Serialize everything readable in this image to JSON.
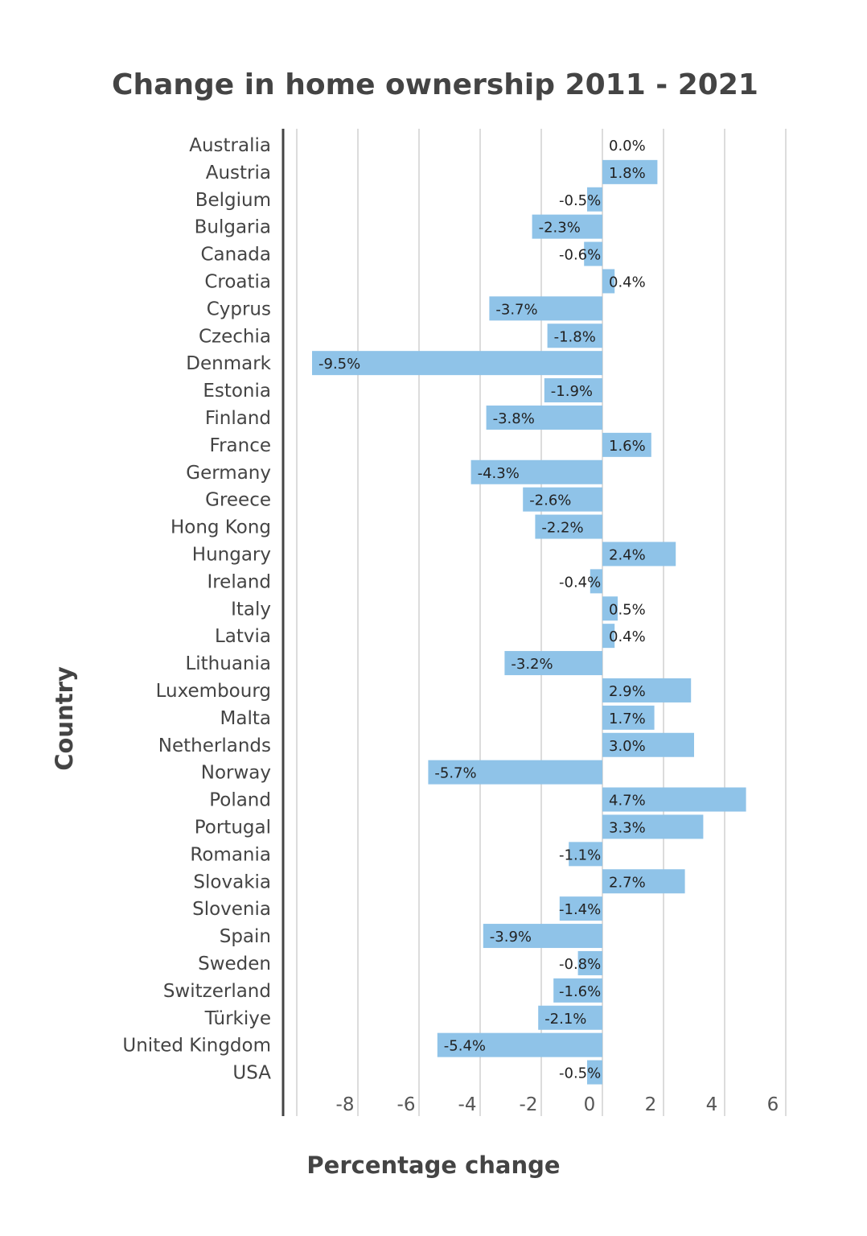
{
  "chart_data": {
    "type": "bar",
    "orientation": "horizontal",
    "title": "Change in home ownership 2011 - 2021",
    "xlabel": "Percentage change",
    "ylabel": "Country",
    "xlim": [
      -10,
      6
    ],
    "xticks": [
      -8,
      -6,
      -4,
      -2,
      0,
      2,
      4,
      6
    ],
    "grid": true,
    "bar_color": "#8fc3e8",
    "categories": [
      "Australia",
      "Austria",
      "Belgium",
      "Bulgaria",
      "Canada",
      "Croatia",
      "Cyprus",
      "Czechia",
      "Denmark",
      "Estonia",
      "Finland",
      "France",
      "Germany",
      "Greece",
      "Hong Kong",
      "Hungary",
      "Ireland",
      "Italy",
      "Latvia",
      "Lithuania",
      "Luxembourg",
      "Malta",
      "Netherlands",
      "Norway",
      "Poland",
      "Portugal",
      "Romania",
      "Slovakia",
      "Slovenia",
      "Spain",
      "Sweden",
      "Switzerland",
      "Türkiye",
      "United Kingdom",
      "USA"
    ],
    "values": [
      0.0,
      1.8,
      -0.5,
      -2.3,
      -0.6,
      0.4,
      -3.7,
      -1.8,
      -9.5,
      -1.9,
      -3.8,
      1.6,
      -4.3,
      -2.6,
      -2.2,
      2.4,
      -0.4,
      0.5,
      0.4,
      -3.2,
      2.9,
      1.7,
      3.0,
      -5.7,
      4.7,
      3.3,
      -1.1,
      2.7,
      -1.4,
      -3.9,
      -0.8,
      -1.6,
      -2.1,
      -5.4,
      -0.5
    ],
    "data_labels": [
      "0.0%",
      "1.8%",
      "-0.5%",
      "-2.3%",
      "-0.6%",
      "0.4%",
      "-3.7%",
      "-1.8%",
      "-9.5%",
      "-1.9%",
      "-3.8%",
      "1.6%",
      "-4.3%",
      "-2.6%",
      "-2.2%",
      "2.4%",
      "-0.4%",
      "0.5%",
      "0.4%",
      "-3.2%",
      "2.9%",
      "1.7%",
      "3.0%",
      "-5.7%",
      "4.7%",
      "3.3%",
      "-1.1%",
      "2.7%",
      "-1.4%",
      "-3.9%",
      "-0.8%",
      "-1.6%",
      "-2.1%",
      "-5.4%",
      "-0.5%"
    ]
  }
}
